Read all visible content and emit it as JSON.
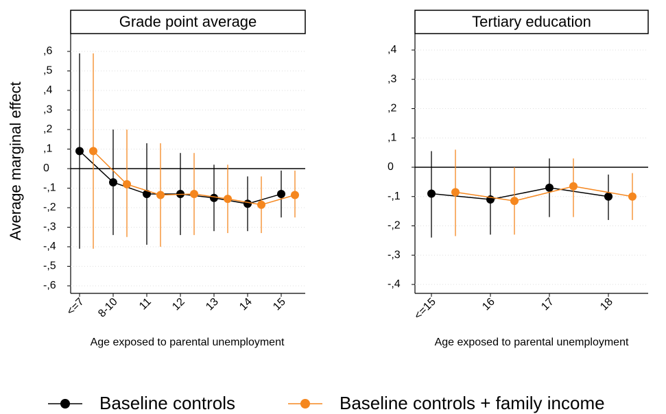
{
  "chart_data": [
    {
      "type": "line",
      "title": "Grade point average",
      "xlabel": "Age exposed to parental unemployment",
      "ylabel": "Average marginal effect",
      "categories": [
        "<=7",
        "8-10",
        "11",
        "12",
        "13",
        "14",
        "15"
      ],
      "ylim": [
        -0.6,
        0.6
      ],
      "yticks": [
        {
          "value": 0.6,
          "label": ",6"
        },
        {
          "value": 0.5,
          "label": ",5"
        },
        {
          "value": 0.4,
          "label": ",4"
        },
        {
          "value": 0.3,
          "label": ",3"
        },
        {
          "value": 0.2,
          "label": ",2"
        },
        {
          "value": 0.1,
          "label": ",1"
        },
        0,
        {
          "value": -0.1,
          "label": "-,1"
        },
        {
          "value": -0.2,
          "label": "-,2"
        },
        {
          "value": -0.3,
          "label": "-,3"
        },
        {
          "value": -0.4,
          "label": "-,4"
        },
        {
          "value": -0.5,
          "label": "-,5"
        },
        {
          "value": -0.6,
          "label": "-,6"
        }
      ],
      "grid": true,
      "series": [
        {
          "name": "Baseline controls",
          "color": "#000000",
          "values": [
            0.09,
            -0.07,
            -0.13,
            -0.13,
            -0.15,
            -0.18,
            -0.13
          ],
          "lower": [
            -0.41,
            -0.34,
            -0.39,
            -0.34,
            -0.32,
            -0.32,
            -0.25
          ],
          "upper": [
            0.59,
            0.2,
            0.13,
            0.08,
            0.02,
            -0.04,
            -0.01
          ]
        },
        {
          "name": "Baseline controls + family income",
          "color": "#f5871f",
          "values": [
            0.09,
            -0.08,
            -0.135,
            -0.13,
            -0.155,
            -0.185,
            -0.135
          ],
          "lower": [
            -0.41,
            -0.35,
            -0.4,
            -0.34,
            -0.33,
            -0.33,
            -0.25
          ],
          "upper": [
            0.59,
            0.2,
            0.13,
            0.08,
            0.02,
            -0.04,
            -0.01
          ]
        }
      ]
    },
    {
      "type": "line",
      "title": "Tertiary education",
      "xlabel": "Age exposed to parental unemployment",
      "categories": [
        "<=15",
        "16",
        "17",
        "18"
      ],
      "ylim": [
        -0.4,
        0.4
      ],
      "yticks": [
        {
          "value": 0.4,
          "label": ",4"
        },
        {
          "value": 0.3,
          "label": ",3"
        },
        {
          "value": 0.2,
          "label": ",2"
        },
        {
          "value": 0.1,
          "label": ",1"
        },
        0,
        {
          "value": -0.1,
          "label": "-,1"
        },
        {
          "value": -0.2,
          "label": "-,2"
        },
        {
          "value": -0.3,
          "label": "-,3"
        },
        {
          "value": -0.4,
          "label": "-,4"
        }
      ],
      "grid": true,
      "series": [
        {
          "color": "#000000",
          "values": [
            -0.09,
            -0.11,
            -0.07,
            -0.1
          ],
          "lower": [
            -0.24,
            -0.23,
            -0.17,
            -0.18
          ],
          "upper": [
            0.055,
            0.0,
            0.03,
            -0.025
          ]
        },
        {
          "color": "#f5871f",
          "values": [
            -0.085,
            -0.115,
            -0.065,
            -0.1
          ],
          "lower": [
            -0.235,
            -0.23,
            -0.17,
            -0.18
          ],
          "upper": [
            0.06,
            0.0,
            0.03,
            -0.02
          ]
        }
      ]
    }
  ]
}
